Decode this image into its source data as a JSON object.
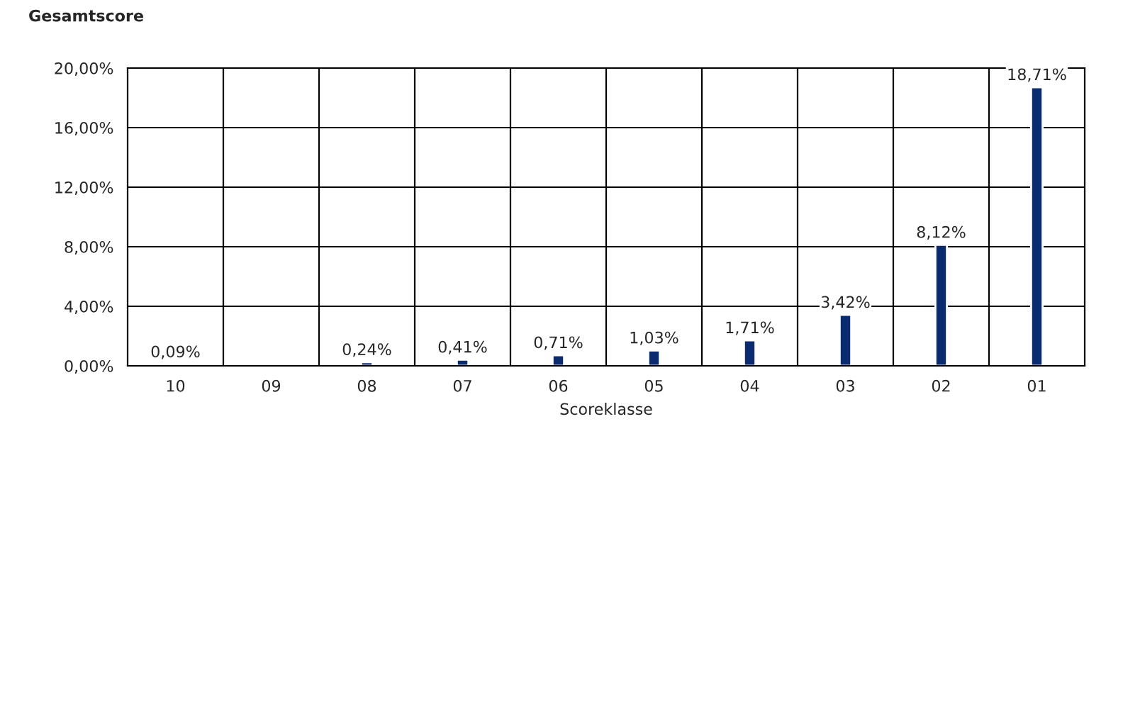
{
  "chart_data": {
    "type": "bar",
    "title": "Gesamtscore",
    "xlabel": "Scoreklasse",
    "categories": [
      "10",
      "09",
      "08",
      "07",
      "06",
      "05",
      "04",
      "03",
      "02",
      "01"
    ],
    "values": [
      0.09,
      null,
      0.24,
      0.41,
      0.71,
      1.03,
      1.71,
      3.42,
      8.12,
      18.71
    ],
    "value_labels": [
      "0,09%",
      null,
      "0,24%",
      "0,41%",
      "0,71%",
      "1,03%",
      "1,71%",
      "3,42%",
      "8,12%",
      "18,71%"
    ],
    "color": "#0b2b70",
    "ylim": [
      0,
      20
    ],
    "yticks": [
      {
        "value": 0,
        "label": "0,00%"
      },
      {
        "value": 4,
        "label": "4,00%"
      },
      {
        "value": 8,
        "label": "8,00%"
      },
      {
        "value": 12,
        "label": "12,00%"
      },
      {
        "value": 16,
        "label": "16,00%"
      },
      {
        "value": 20,
        "label": "20,00%"
      }
    ],
    "grid": true
  }
}
